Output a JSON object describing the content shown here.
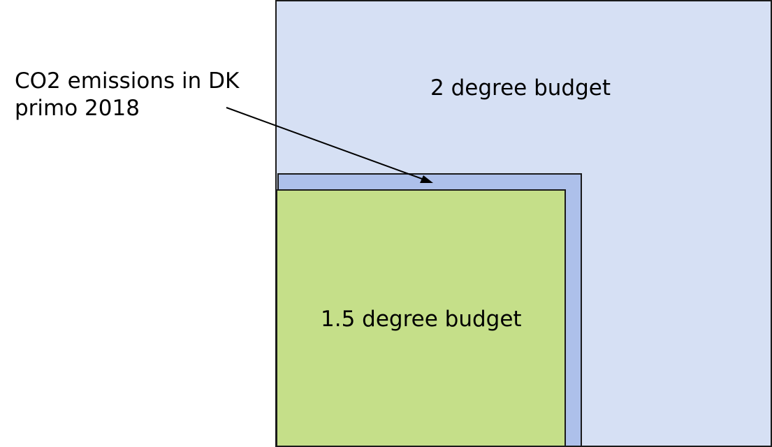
{
  "diagram": {
    "budget_2_degree": {
      "label": "2 degree budget",
      "color": "#d6e0f4"
    },
    "co2_emissions_dk": {
      "label_line1": "CO2 emissions in DK",
      "label_line2": "primo 2018",
      "color": "#adc0ea"
    },
    "budget_1_5_degree": {
      "label": "1.5 degree budget",
      "color": "#c5df89"
    },
    "outline_color": "#1a1a1a",
    "arrow_color": "#000000"
  }
}
